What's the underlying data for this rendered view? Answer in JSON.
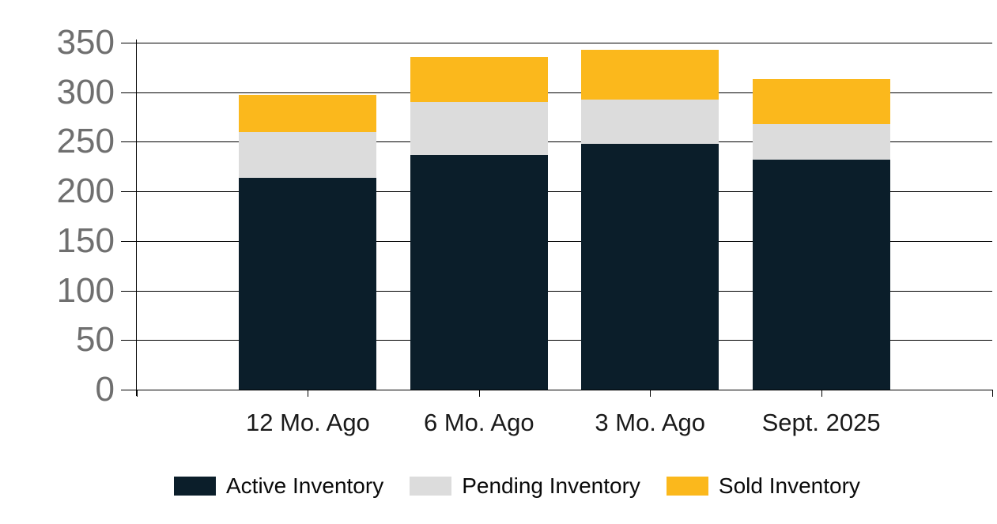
{
  "chart_data": {
    "type": "bar",
    "stacked": true,
    "title": "",
    "xlabel": "",
    "ylabel": "",
    "categories": [
      "12 Mo. Ago",
      "6 Mo. Ago",
      "3 Mo. Ago",
      "Sept. 2025"
    ],
    "series": [
      {
        "name": "Active Inventory",
        "color": "#0b1e2a",
        "values": [
          214,
          237,
          248,
          232
        ]
      },
      {
        "name": "Pending Inventory",
        "color": "#dcdcdc",
        "values": [
          46,
          53,
          45,
          36
        ]
      },
      {
        "name": "Sold Inventory",
        "color": "#fbb81c",
        "values": [
          37,
          46,
          50,
          45
        ]
      }
    ],
    "totals": [
      297,
      336,
      343,
      313
    ],
    "ylim": [
      0,
      350
    ],
    "ytick_step": 50,
    "ytick_labels": [
      "0",
      "50",
      "100",
      "150",
      "200",
      "250",
      "300",
      "350"
    ],
    "grid": true,
    "legend_position": "bottom"
  },
  "colors": {
    "background": "#ffffff",
    "axis": "#000000",
    "gridline": "#000000",
    "y_label_text": "#6f6f6f",
    "x_label_text": "#1a1a1a",
    "legend_text": "#0a0a0a"
  }
}
